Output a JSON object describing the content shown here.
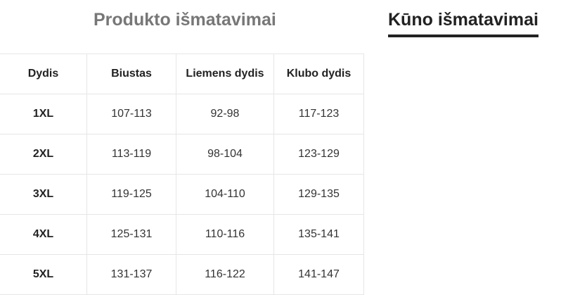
{
  "tabs": [
    "Produkto išmatavimai",
    "Kūno išmatavimai"
  ],
  "active_tab": "Kūno išmatavimai",
  "table": {
    "headers": [
      "Dydis",
      "Biustas",
      "Liemens dydis",
      "Klubo dydis"
    ],
    "rows": [
      [
        "1XL",
        "107-113",
        "92-98",
        "117-123"
      ],
      [
        "2XL",
        "113-119",
        "98-104",
        "123-129"
      ],
      [
        "3XL",
        "119-125",
        "104-110",
        "129-135"
      ],
      [
        "4XL",
        "125-131",
        "110-116",
        "135-141"
      ],
      [
        "5XL",
        "131-137",
        "116-122",
        "141-147"
      ]
    ]
  }
}
